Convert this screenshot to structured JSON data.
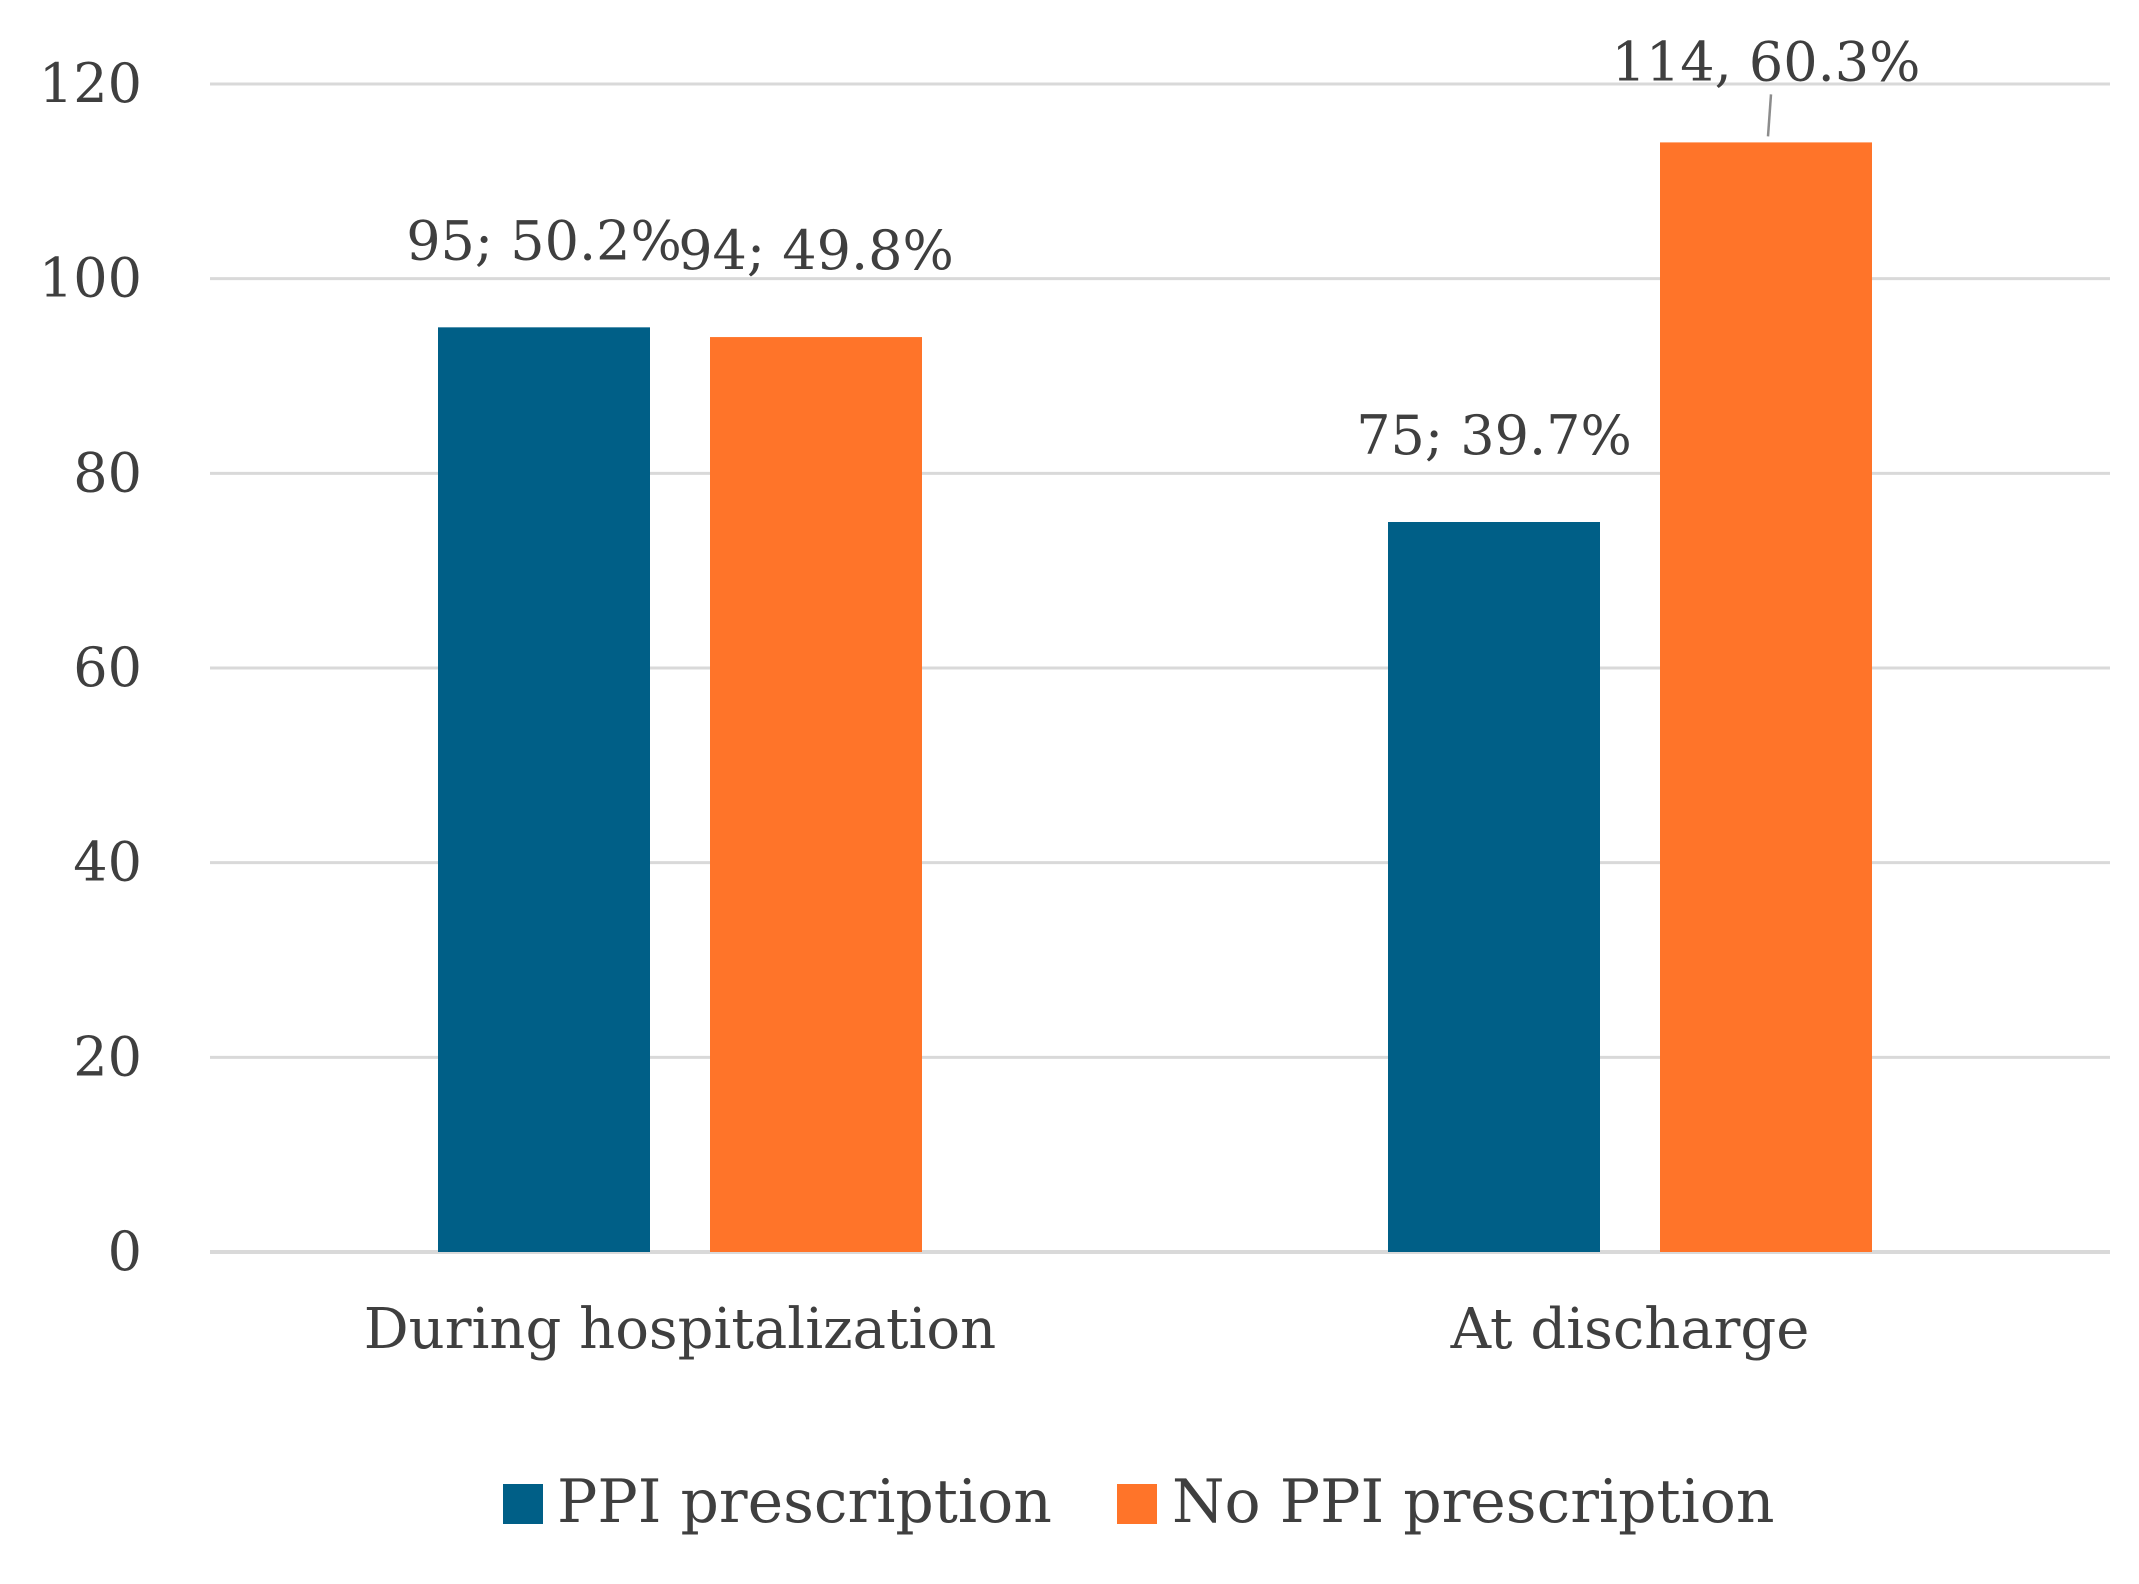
{
  "chart_data": {
    "type": "bar",
    "title": "",
    "xlabel": "",
    "ylabel": "",
    "categories": [
      "During hospitalization",
      "At discharge"
    ],
    "series": [
      {
        "name": "PPI prescription",
        "color": "#005f87",
        "values": [
          95,
          75
        ],
        "labels": [
          "95; 50.2%",
          "75; 39.7%"
        ]
      },
      {
        "name": "No PPI prescription",
        "color": "#ff7429",
        "values": [
          94,
          114
        ],
        "labels": [
          "94; 49.8%",
          "114, 60.3%"
        ]
      }
    ],
    "ylim": [
      0,
      120
    ],
    "yticks": [
      0,
      20,
      40,
      60,
      80,
      100,
      120
    ],
    "grid": true,
    "legend_position": "bottom-center"
  }
}
